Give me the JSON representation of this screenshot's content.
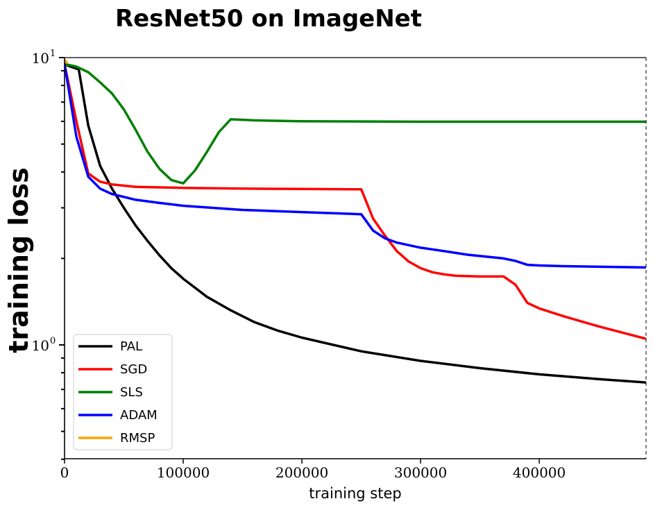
{
  "chart_data": {
    "type": "line",
    "title": "ResNet50 on ImageNet",
    "xlabel": "training step",
    "ylabel": "training loss",
    "yscale": "log",
    "xlim": [
      0,
      490000
    ],
    "ylim": [
      0.4,
      10
    ],
    "x_ticks": [
      0,
      100000,
      200000,
      300000,
      400000
    ],
    "x_tick_labels": [
      "0",
      "100000",
      "200000",
      "300000",
      "400000"
    ],
    "y_major_ticks": [
      1,
      10
    ],
    "y_major_labels": [
      "10",
      "10"
    ],
    "y_major_exponents": [
      "0",
      "1"
    ],
    "y_minor_ticks": [
      0.4,
      0.5,
      0.6,
      0.7,
      0.8,
      0.9,
      2,
      3,
      4,
      5,
      6,
      7,
      8,
      9
    ],
    "legend_position": "lower-left",
    "series": [
      {
        "name": "PAL",
        "color": "#000000",
        "x": [
          0,
          5000,
          12000,
          20000,
          30000,
          40000,
          50000,
          60000,
          70000,
          80000,
          90000,
          100000,
          120000,
          140000,
          160000,
          180000,
          200000,
          250000,
          300000,
          350000,
          400000,
          450000,
          490000
        ],
        "y": [
          9.5,
          9.3,
          9.1,
          5.8,
          4.2,
          3.5,
          3.0,
          2.6,
          2.3,
          2.05,
          1.85,
          1.7,
          1.47,
          1.32,
          1.2,
          1.12,
          1.06,
          0.95,
          0.88,
          0.83,
          0.79,
          0.76,
          0.74
        ]
      },
      {
        "name": "SGD",
        "color": "#ff0000",
        "x": [
          0,
          10000,
          20000,
          30000,
          40000,
          60000,
          100000,
          150000,
          200000,
          250000,
          260000,
          270000,
          280000,
          290000,
          300000,
          310000,
          320000,
          330000,
          350000,
          370000,
          380000,
          390000,
          400000,
          420000,
          450000,
          490000
        ],
        "y": [
          9.5,
          6.0,
          3.95,
          3.7,
          3.62,
          3.55,
          3.52,
          3.5,
          3.49,
          3.48,
          2.75,
          2.4,
          2.12,
          1.95,
          1.85,
          1.79,
          1.76,
          1.74,
          1.73,
          1.73,
          1.62,
          1.4,
          1.34,
          1.26,
          1.16,
          1.05
        ]
      },
      {
        "name": "SLS",
        "color": "#008000",
        "x": [
          0,
          10000,
          20000,
          30000,
          40000,
          50000,
          60000,
          70000,
          80000,
          90000,
          100000,
          110000,
          120000,
          130000,
          140000,
          160000,
          200000,
          300000,
          490000
        ],
        "y": [
          9.5,
          9.3,
          8.9,
          8.2,
          7.5,
          6.6,
          5.6,
          4.7,
          4.1,
          3.75,
          3.65,
          4.05,
          4.7,
          5.5,
          6.1,
          6.05,
          6.0,
          5.98,
          5.98
        ]
      },
      {
        "name": "ADAM",
        "color": "#0000ff",
        "x": [
          0,
          10000,
          20000,
          30000,
          40000,
          60000,
          80000,
          100000,
          150000,
          200000,
          250000,
          260000,
          270000,
          280000,
          300000,
          320000,
          340000,
          370000,
          380000,
          390000,
          400000,
          420000,
          490000
        ],
        "y": [
          9.5,
          5.3,
          3.85,
          3.5,
          3.35,
          3.2,
          3.12,
          3.05,
          2.95,
          2.9,
          2.85,
          2.5,
          2.35,
          2.27,
          2.18,
          2.12,
          2.06,
          2.0,
          1.96,
          1.9,
          1.89,
          1.88,
          1.86
        ]
      },
      {
        "name": "RMSP",
        "color": "#ffa500",
        "x": [
          0,
          2000
        ],
        "y": [
          9.8,
          9.6
        ]
      }
    ]
  }
}
